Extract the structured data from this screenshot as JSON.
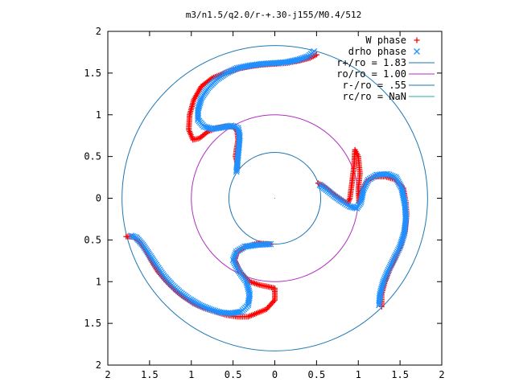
{
  "chart_data": {
    "type": "scatter",
    "title": "m3/n1.5/q2.0/r-+.30-j155/M0.4/512",
    "xlabel": "",
    "ylabel": "",
    "xlim": [
      -2,
      2
    ],
    "ylim": [
      -2,
      2
    ],
    "xticks": [
      -2,
      -1.5,
      -1,
      -0.5,
      0,
      0.5,
      1,
      1.5,
      2
    ],
    "yticks": [
      -2,
      -1.5,
      -1,
      -0.5,
      0,
      0.5,
      1,
      1.5,
      2
    ],
    "xtick_labels": [
      "2",
      "1.5",
      "1",
      "0.5",
      "0",
      "0.5",
      "1",
      "1.5",
      "2"
    ],
    "ytick_labels": [
      "2",
      "1.5",
      "1",
      "0.5",
      "0",
      "0.5",
      "1",
      "1.5",
      "2"
    ],
    "grid": false,
    "legend_position": "top-right",
    "series": [
      {
        "name": "W phase",
        "kind": "points",
        "marker": "plus",
        "color": "#ff0000",
        "arms": [
          [
            [
              0.5,
              1.72
            ],
            [
              0.42,
              1.68
            ],
            [
              0.3,
              1.65
            ],
            [
              0.15,
              1.62
            ],
            [
              0.0,
              1.61
            ],
            [
              -0.15,
              1.6
            ],
            [
              -0.3,
              1.58
            ],
            [
              -0.45,
              1.55
            ],
            [
              -0.6,
              1.5
            ],
            [
              -0.75,
              1.44
            ],
            [
              -0.88,
              1.34
            ],
            [
              -0.97,
              1.18
            ],
            [
              -1.02,
              1.0
            ],
            [
              -1.03,
              0.82
            ],
            [
              -0.98,
              0.7
            ],
            [
              -0.9,
              0.72
            ],
            [
              -0.8,
              0.8
            ],
            [
              -0.7,
              0.84
            ],
            [
              -0.6,
              0.86
            ],
            [
              -0.5,
              0.86
            ],
            [
              -0.45,
              0.8
            ],
            [
              -0.44,
              0.7
            ],
            [
              -0.46,
              0.58
            ],
            [
              -0.47,
              0.5
            ],
            [
              -0.45,
              0.42
            ],
            [
              -0.45,
              0.36
            ]
          ],
          [
            [
              1.28,
              -1.3
            ],
            [
              1.28,
              -1.15
            ],
            [
              1.32,
              -1.0
            ],
            [
              1.38,
              -0.85
            ],
            [
              1.45,
              -0.7
            ],
            [
              1.52,
              -0.55
            ],
            [
              1.56,
              -0.4
            ],
            [
              1.58,
              -0.2
            ],
            [
              1.57,
              -0.05
            ],
            [
              1.54,
              0.12
            ],
            [
              1.45,
              0.22
            ],
            [
              1.32,
              0.26
            ],
            [
              1.2,
              0.26
            ],
            [
              1.1,
              0.2
            ],
            [
              1.02,
              0.05
            ],
            [
              1.01,
              -0.05
            ],
            [
              1.0,
              0.1
            ],
            [
              1.02,
              0.3
            ],
            [
              1.0,
              0.5
            ],
            [
              0.96,
              0.58
            ],
            [
              0.95,
              0.4
            ],
            [
              0.92,
              0.15
            ],
            [
              0.9,
              0.0
            ],
            [
              0.87,
              -0.07
            ],
            [
              0.8,
              -0.02
            ],
            [
              0.7,
              0.05
            ],
            [
              0.6,
              0.14
            ],
            [
              0.52,
              0.18
            ]
          ],
          [
            [
              -1.78,
              -0.46
            ],
            [
              -1.7,
              -0.46
            ],
            [
              -1.62,
              -0.52
            ],
            [
              -1.55,
              -0.62
            ],
            [
              -1.48,
              -0.75
            ],
            [
              -1.4,
              -0.88
            ],
            [
              -1.3,
              -1.0
            ],
            [
              -1.2,
              -1.1
            ],
            [
              -1.1,
              -1.18
            ],
            [
              -0.98,
              -1.26
            ],
            [
              -0.85,
              -1.32
            ],
            [
              -0.72,
              -1.36
            ],
            [
              -0.58,
              -1.4
            ],
            [
              -0.45,
              -1.42
            ],
            [
              -0.32,
              -1.42
            ],
            [
              -0.22,
              -1.38
            ],
            [
              -0.1,
              -1.33
            ],
            [
              0.0,
              -1.22
            ],
            [
              0.0,
              -1.08
            ],
            [
              -0.08,
              -1.06
            ],
            [
              -0.18,
              -1.04
            ],
            [
              -0.3,
              -1.0
            ],
            [
              -0.42,
              -0.88
            ],
            [
              -0.48,
              -0.74
            ],
            [
              -0.45,
              -0.64
            ],
            [
              -0.35,
              -0.58
            ],
            [
              -0.2,
              -0.54
            ],
            [
              -0.05,
              -0.55
            ]
          ]
        ]
      },
      {
        "name": "drho phase",
        "kind": "points",
        "marker": "cross",
        "color": "#1e90ff",
        "arms": [
          [
            [
              0.47,
              1.76
            ],
            [
              0.4,
              1.7
            ],
            [
              0.28,
              1.66
            ],
            [
              0.14,
              1.63
            ],
            [
              0.0,
              1.62
            ],
            [
              -0.15,
              1.61
            ],
            [
              -0.3,
              1.59
            ],
            [
              -0.45,
              1.56
            ],
            [
              -0.58,
              1.5
            ],
            [
              -0.7,
              1.42
            ],
            [
              -0.8,
              1.32
            ],
            [
              -0.88,
              1.2
            ],
            [
              -0.92,
              1.06
            ],
            [
              -0.92,
              0.94
            ],
            [
              -0.85,
              0.86
            ],
            [
              -0.75,
              0.83
            ],
            [
              -0.62,
              0.85
            ],
            [
              -0.52,
              0.87
            ],
            [
              -0.44,
              0.84
            ],
            [
              -0.42,
              0.74
            ],
            [
              -0.43,
              0.62
            ],
            [
              -0.44,
              0.52
            ],
            [
              -0.45,
              0.4
            ],
            [
              -0.46,
              0.32
            ]
          ],
          [
            [
              1.25,
              -1.28
            ],
            [
              1.26,
              -1.15
            ],
            [
              1.3,
              -1.0
            ],
            [
              1.36,
              -0.86
            ],
            [
              1.43,
              -0.72
            ],
            [
              1.5,
              -0.58
            ],
            [
              1.55,
              -0.42
            ],
            [
              1.57,
              -0.25
            ],
            [
              1.56,
              -0.08
            ],
            [
              1.52,
              0.12
            ],
            [
              1.45,
              0.25
            ],
            [
              1.35,
              0.29
            ],
            [
              1.22,
              0.28
            ],
            [
              1.12,
              0.22
            ],
            [
              1.06,
              0.1
            ],
            [
              1.03,
              -0.05
            ],
            [
              0.98,
              -0.12
            ],
            [
              0.9,
              -0.1
            ],
            [
              0.82,
              -0.05
            ],
            [
              0.72,
              0.02
            ],
            [
              0.62,
              0.1
            ],
            [
              0.54,
              0.16
            ]
          ],
          [
            [
              -1.72,
              -0.45
            ],
            [
              -1.66,
              -0.47
            ],
            [
              -1.58,
              -0.56
            ],
            [
              -1.5,
              -0.68
            ],
            [
              -1.42,
              -0.8
            ],
            [
              -1.33,
              -0.93
            ],
            [
              -1.23,
              -1.04
            ],
            [
              -1.13,
              -1.13
            ],
            [
              -1.02,
              -1.21
            ],
            [
              -0.9,
              -1.28
            ],
            [
              -0.78,
              -1.33
            ],
            [
              -0.65,
              -1.37
            ],
            [
              -0.52,
              -1.38
            ],
            [
              -0.4,
              -1.36
            ],
            [
              -0.32,
              -1.28
            ],
            [
              -0.3,
              -1.15
            ],
            [
              -0.34,
              -1.0
            ],
            [
              -0.44,
              -0.86
            ],
            [
              -0.5,
              -0.74
            ],
            [
              -0.46,
              -0.64
            ],
            [
              -0.36,
              -0.58
            ],
            [
              -0.22,
              -0.56
            ],
            [
              -0.05,
              -0.55
            ]
          ]
        ]
      },
      {
        "name": "r+/ro = 1.83",
        "kind": "circle",
        "radius": 1.83,
        "color": "#1f77b4"
      },
      {
        "name": "ro/ro = 1.00",
        "kind": "circle",
        "radius": 1.0,
        "color": "#b030c0"
      },
      {
        "name": "r-/ro = .55",
        "kind": "circle",
        "radius": 0.55,
        "color": "#1f77b4"
      },
      {
        "name": "rc/ro = NaN",
        "kind": "circle",
        "radius": null,
        "color": "#20b2aa"
      }
    ]
  }
}
